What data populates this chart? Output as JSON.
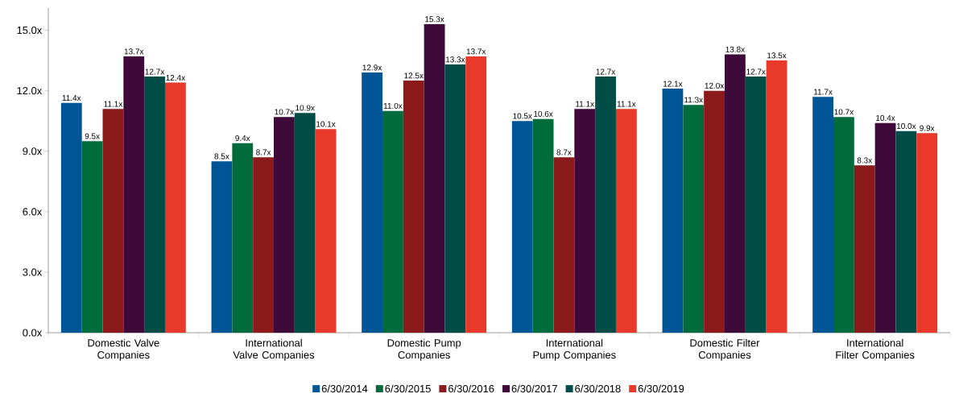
{
  "chart_data": {
    "type": "bar",
    "categories": [
      "Domestic Valve Companies",
      "International Valve Companies",
      "Domestic Pump Companies",
      "International Pump Companies",
      "Domestic Filter Companies",
      "International Filter Companies"
    ],
    "series": [
      {
        "name": "6/30/2014",
        "color": "#005596",
        "values": [
          11.4,
          8.5,
          12.9,
          10.5,
          12.1,
          11.7
        ],
        "value_labels": [
          "11.4x",
          "8.5x",
          "12.9x",
          "10.5x",
          "12.1x",
          "11.7x"
        ]
      },
      {
        "name": "6/30/2015",
        "color": "#006b3c",
        "values": [
          9.5,
          9.4,
          11.0,
          10.6,
          11.3,
          10.7
        ],
        "value_labels": [
          "9.5x",
          "9.4x",
          "11.0x",
          "10.6x",
          "11.3x",
          "10.7x"
        ]
      },
      {
        "name": "6/30/2016",
        "color": "#8b1a1a",
        "values": [
          11.1,
          8.7,
          12.5,
          8.7,
          12.0,
          8.3
        ],
        "value_labels": [
          "11.1x",
          "8.7x",
          "12.5x",
          "8.7x",
          "12.0x",
          "8.3x"
        ]
      },
      {
        "name": "6/30/2017",
        "color": "#3d0a3a",
        "values": [
          13.7,
          10.7,
          15.3,
          11.1,
          13.8,
          10.4
        ],
        "value_labels": [
          "13.7x",
          "10.7x",
          "15.3x",
          "11.1x",
          "13.8x",
          "10.4x"
        ]
      },
      {
        "name": "6/30/2018",
        "color": "#004d47",
        "values": [
          12.7,
          10.9,
          13.3,
          12.7,
          12.7,
          10.0
        ],
        "value_labels": [
          "12.7x",
          "10.9x",
          "13.3x",
          "12.7x",
          "12.7x",
          "10.0x"
        ]
      },
      {
        "name": "6/30/2019",
        "color": "#e8392a",
        "values": [
          12.4,
          10.1,
          13.7,
          11.1,
          13.5,
          9.9
        ],
        "value_labels": [
          "12.4x",
          "10.1x",
          "13.7x",
          "11.1x",
          "13.5x",
          "9.9x"
        ]
      }
    ],
    "ylim": [
      0,
      16.1
    ],
    "yticks": [
      {
        "value": 0,
        "label": "0.0x"
      },
      {
        "value": 3,
        "label": "3.0x"
      },
      {
        "value": 6,
        "label": "6.0x"
      },
      {
        "value": 9,
        "label": "9.0x"
      },
      {
        "value": 12,
        "label": "12.0x"
      },
      {
        "value": 15,
        "label": "15.0x"
      }
    ],
    "legend": "bottom"
  }
}
